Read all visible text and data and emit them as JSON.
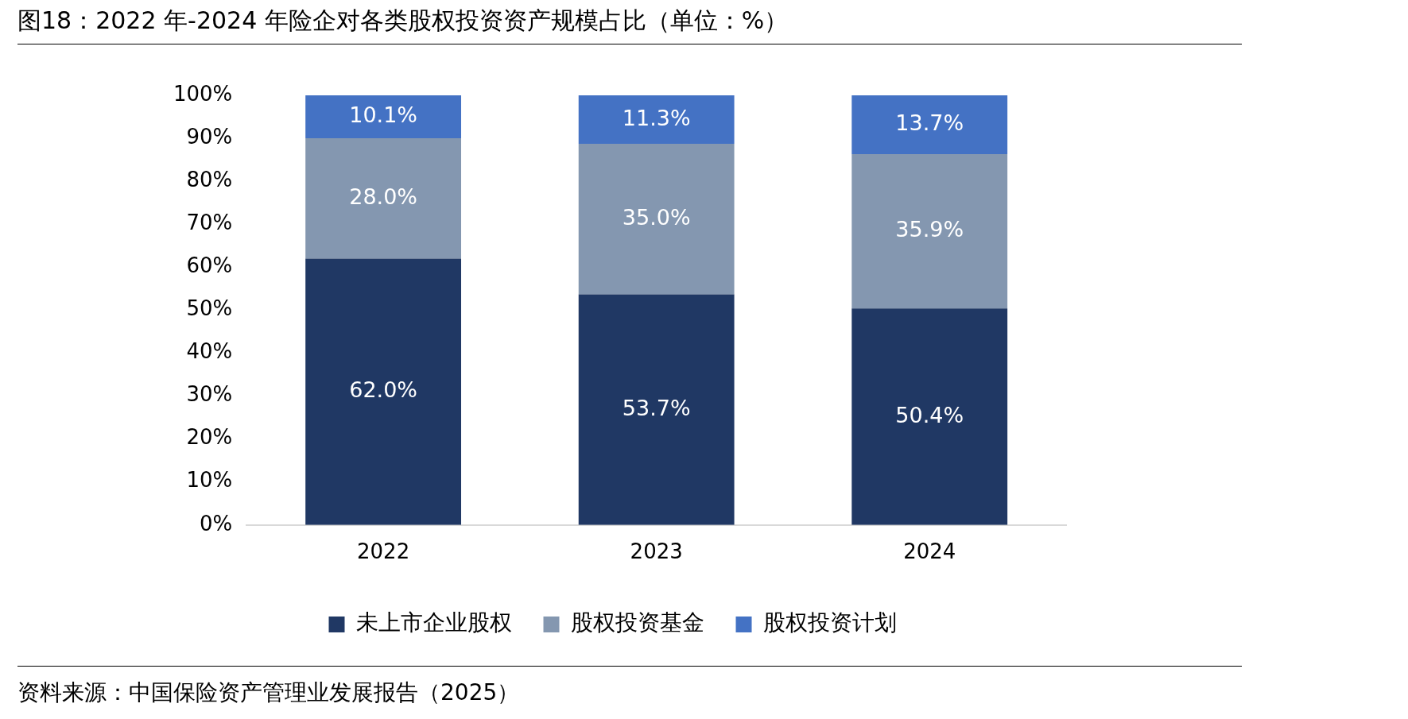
{
  "chart_data": {
    "type": "bar",
    "title": "图18：2022 年-2024 年险企对各类股权投资资产规模占比（单位：%）",
    "categories": [
      "2022",
      "2023",
      "2024"
    ],
    "stacked": true,
    "series": [
      {
        "name": "未上市企业股权",
        "color": "#203864",
        "values": [
          62.0,
          53.7,
          50.4
        ],
        "value_labels": [
          "62.0%",
          "53.7%",
          "50.4%"
        ]
      },
      {
        "name": "股权投资基金",
        "color": "#8497b0",
        "values": [
          28.0,
          35.0,
          35.9
        ],
        "value_labels": [
          "28.0%",
          "35.0%",
          "35.9%"
        ]
      },
      {
        "name": "股权投资计划",
        "color": "#4472c4",
        "values": [
          10.1,
          11.3,
          13.7
        ],
        "value_labels": [
          "10.1%",
          "11.3%",
          "13.7%"
        ]
      }
    ],
    "ylim": [
      0,
      100
    ],
    "yticks": [
      {
        "value": 0,
        "label": "0%"
      },
      {
        "value": 10,
        "label": "10%"
      },
      {
        "value": 20,
        "label": "20%"
      },
      {
        "value": 30,
        "label": "30%"
      },
      {
        "value": 40,
        "label": "40%"
      },
      {
        "value": 50,
        "label": "50%"
      },
      {
        "value": 60,
        "label": "60%"
      },
      {
        "value": 70,
        "label": "70%"
      },
      {
        "value": 80,
        "label": "80%"
      },
      {
        "value": 90,
        "label": "90%"
      },
      {
        "value": 100,
        "label": "100%"
      }
    ],
    "grid": false,
    "legend": "bottom",
    "annotations": [
      "资料来源：中国保险资产管理业发展报告（2025）"
    ]
  }
}
